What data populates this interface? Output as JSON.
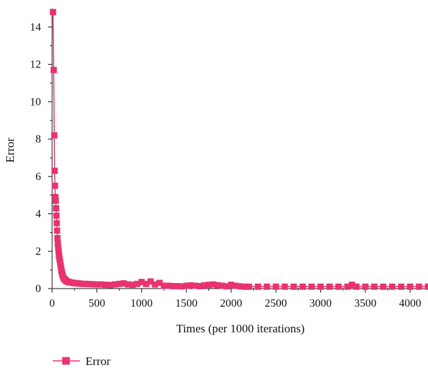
{
  "chart_data": {
    "type": "line",
    "title": "",
    "xlabel": "Times (per 1000 iterations)",
    "ylabel": "Error",
    "xlim": [
      0,
      4200
    ],
    "ylim": [
      0,
      15
    ],
    "x_ticks": [
      0,
      500,
      1000,
      1500,
      2000,
      2500,
      3000,
      3500,
      4000
    ],
    "y_ticks": [
      0,
      2,
      4,
      6,
      8,
      10,
      12,
      14
    ],
    "grid": false,
    "legend_position": "bottom-left",
    "color": "#e8336f",
    "marker": "square",
    "series": [
      {
        "name": "Error",
        "x": [
          10,
          18,
          24,
          28,
          32,
          36,
          40,
          44,
          48,
          52,
          56,
          60,
          64,
          68,
          72,
          76,
          80,
          85,
          90,
          95,
          100,
          105,
          110,
          115,
          120,
          130,
          140,
          150,
          160,
          170,
          180,
          190,
          200,
          220,
          240,
          260,
          280,
          300,
          320,
          350,
          380,
          420,
          460,
          500,
          550,
          600,
          650,
          700,
          750,
          800,
          850,
          900,
          950,
          1000,
          1050,
          1100,
          1150,
          1200,
          1250,
          1300,
          1350,
          1400,
          1450,
          1500,
          1550,
          1600,
          1650,
          1700,
          1750,
          1800,
          1850,
          1900,
          1950,
          2000,
          2050,
          2100,
          2150,
          2200,
          2300,
          2400,
          2500,
          2600,
          2700,
          2800,
          2900,
          3000,
          3100,
          3200,
          3300,
          3350,
          3400,
          3500,
          3600,
          3700,
          3800,
          3900,
          4000,
          4100,
          4200
        ],
        "values": [
          14.8,
          11.7,
          8.2,
          6.3,
          5.5,
          4.9,
          4.7,
          4.3,
          3.9,
          3.5,
          3.1,
          2.7,
          2.4,
          2.2,
          2.0,
          1.8,
          1.7,
          1.55,
          1.4,
          1.25,
          1.1,
          0.95,
          0.85,
          0.75,
          0.65,
          0.55,
          0.5,
          0.45,
          0.4,
          0.38,
          0.36,
          0.34,
          0.33,
          0.32,
          0.3,
          0.29,
          0.28,
          0.27,
          0.26,
          0.25,
          0.25,
          0.24,
          0.23,
          0.22,
          0.22,
          0.2,
          0.19,
          0.22,
          0.25,
          0.28,
          0.22,
          0.2,
          0.25,
          0.35,
          0.25,
          0.38,
          0.22,
          0.3,
          0.15,
          0.15,
          0.13,
          0.13,
          0.12,
          0.15,
          0.17,
          0.15,
          0.13,
          0.17,
          0.2,
          0.22,
          0.18,
          0.15,
          0.12,
          0.2,
          0.15,
          0.12,
          0.1,
          0.1,
          0.1,
          0.1,
          0.1,
          0.1,
          0.1,
          0.1,
          0.1,
          0.1,
          0.1,
          0.1,
          0.1,
          0.2,
          0.1,
          0.1,
          0.1,
          0.1,
          0.1,
          0.1,
          0.1,
          0.1,
          0.1
        ]
      }
    ]
  }
}
